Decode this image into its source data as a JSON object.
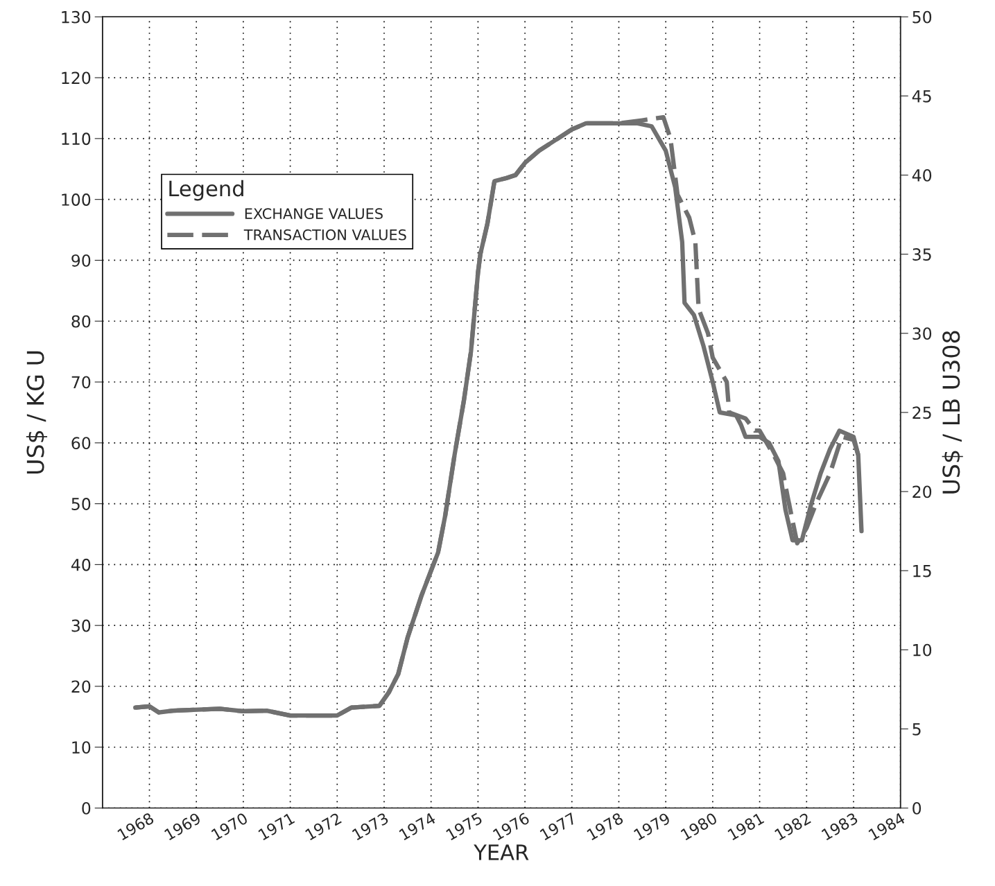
{
  "chart_data": {
    "type": "line",
    "xlabel": "YEAR",
    "ylabel": "US$ / KG U",
    "y2label": "US$ / LB U308",
    "legend_title": "Legend",
    "xlim": [
      1967,
      1984
    ],
    "xticks": [
      1968,
      1969,
      1970,
      1971,
      1972,
      1973,
      1974,
      1975,
      1976,
      1977,
      1978,
      1979,
      1980,
      1981,
      1982,
      1983,
      1984
    ],
    "ylim": [
      0,
      130
    ],
    "yticks": [
      0,
      10,
      20,
      30,
      40,
      50,
      60,
      70,
      80,
      90,
      100,
      110,
      120,
      130
    ],
    "y2lim": [
      0,
      50
    ],
    "y2ticks": [
      0,
      5,
      10,
      15,
      20,
      25,
      30,
      35,
      40,
      45,
      50
    ],
    "grid": true,
    "legend": "top left",
    "marker": "none",
    "series": [
      {
        "name": "EXCHANGE VALUES",
        "color": "#707070",
        "line_style": "solid",
        "x": [
          1967.7,
          1968.0,
          1968.2,
          1968.5,
          1969.5,
          1970.0,
          1970.5,
          1971.0,
          1972.0,
          1972.3,
          1972.9,
          1973.1,
          1973.3,
          1973.5,
          1973.8,
          1974.0,
          1974.15,
          1974.3,
          1974.5,
          1974.7,
          1974.85,
          1975.0,
          1975.05,
          1975.2,
          1975.35,
          1975.6,
          1975.8,
          1976.0,
          1976.3,
          1976.6,
          1977.0,
          1977.3,
          1977.6,
          1978.0,
          1978.4,
          1978.7,
          1979.0,
          1979.2,
          1979.35,
          1979.4,
          1979.6,
          1979.8,
          1980.0,
          1980.15,
          1980.5,
          1980.6,
          1980.7,
          1981.0,
          1981.2,
          1981.4,
          1981.55,
          1981.7,
          1981.9,
          1982.1,
          1982.3,
          1982.5,
          1982.7,
          1983.0,
          1983.1,
          1983.17
        ],
        "values": [
          16.5,
          16.7,
          15.7,
          16,
          16.3,
          15.9,
          16,
          15.2,
          15.2,
          16.5,
          16.8,
          19,
          22,
          28,
          35,
          39,
          42,
          48,
          58,
          67,
          75,
          88,
          91,
          96,
          103,
          103.5,
          104,
          106,
          108,
          109.5,
          111.5,
          112.5,
          112.5,
          112.5,
          112.5,
          112,
          108,
          102,
          93,
          83,
          81,
          76,
          70,
          65,
          64.5,
          63,
          61,
          61,
          60,
          57,
          49,
          44,
          44,
          50,
          55,
          59,
          62,
          61,
          58,
          45.5
        ]
      },
      {
        "name": "TRANSACTION VALUES",
        "color": "#707070",
        "line_style": "dashed",
        "x": [
          1967.7,
          1968.0,
          1968.2,
          1968.5,
          1969.5,
          1970.0,
          1970.5,
          1971.0,
          1972.0,
          1972.3,
          1972.9,
          1973.1,
          1973.3,
          1973.5,
          1973.8,
          1974.0,
          1974.15,
          1974.3,
          1974.5,
          1974.7,
          1974.85,
          1975.0,
          1975.05,
          1975.2,
          1975.35,
          1975.6,
          1975.8,
          1976.0,
          1976.3,
          1976.6,
          1977.0,
          1977.3,
          1977.6,
          1978.0,
          1978.5,
          1978.95,
          1979.1,
          1979.25,
          1979.5,
          1979.63,
          1979.7,
          1979.9,
          1980.0,
          1980.3,
          1980.35,
          1980.7,
          1980.9,
          1981.0,
          1981.3,
          1981.5,
          1981.6,
          1981.8,
          1982.0,
          1982.2,
          1982.5,
          1982.75,
          1983.0,
          1983.1
        ],
        "values": [
          16.5,
          16.7,
          15.7,
          16,
          16.3,
          15.9,
          16,
          15.2,
          15.2,
          16.5,
          16.8,
          19,
          22,
          28,
          35,
          39,
          42,
          48,
          58,
          67,
          75,
          88,
          91,
          96,
          103,
          103.5,
          104,
          106,
          108,
          109.5,
          111.5,
          112.5,
          112.5,
          112.5,
          113,
          113.5,
          110,
          100.8,
          97,
          93,
          82,
          78,
          74,
          70,
          65,
          64,
          62,
          62,
          58,
          55,
          51,
          43.5,
          46,
          50,
          55,
          61,
          60.5,
          58
        ]
      }
    ]
  }
}
